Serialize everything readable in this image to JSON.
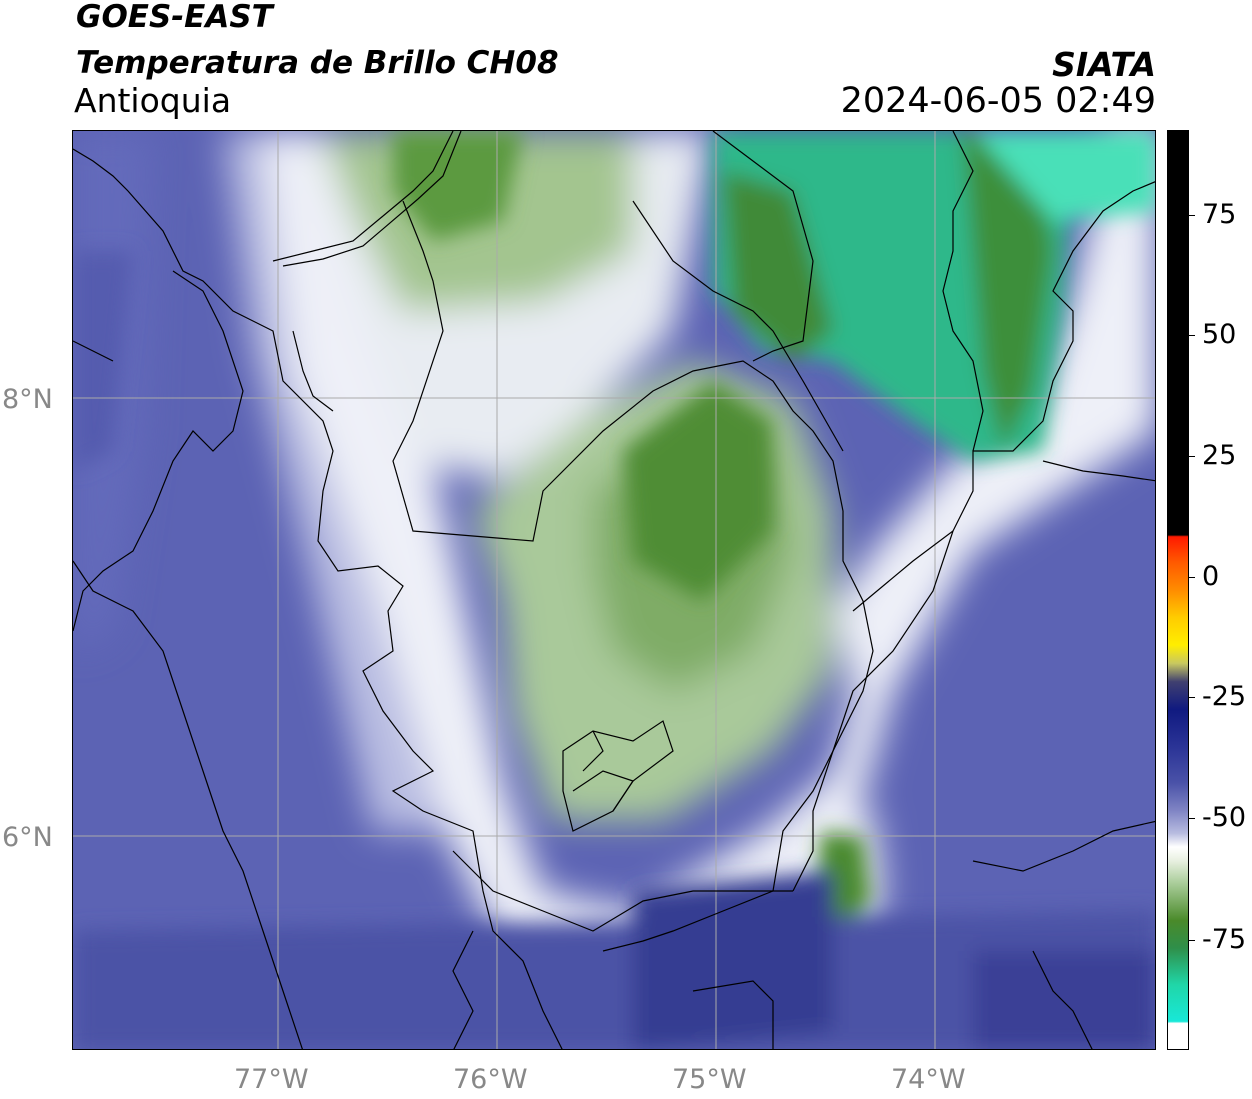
{
  "header": {
    "satellite": "GOES-EAST",
    "product": "Temperatura de Brillo CH08",
    "region": "Antioquia",
    "organization": "SIATA",
    "datetime": "2024-06-05 02:49"
  },
  "axes": {
    "longitude_ticks": [
      "77°W",
      "76°W",
      "75°W",
      "74°W"
    ],
    "latitude_ticks": [
      "8°N",
      "6°N"
    ]
  },
  "colorbar": {
    "labels": [
      "75",
      "50",
      "25",
      "0",
      "-25",
      "-50",
      "-75"
    ],
    "colors": {
      "black": "#000000",
      "red": "#ff1a00",
      "orange": "#ff8c00",
      "yellow": "#ffee00",
      "navy": "#101a80",
      "slate_blue": "#4a52a8",
      "lavender": "#b8bce0",
      "white": "#ffffff",
      "green": "#4a8a2a",
      "teal": "#20d6a8",
      "cyan": "#18e8d8"
    }
  },
  "map": {
    "colors": {
      "cold_cloud_green": "#4f8d34",
      "very_cold_teal": "#2db88a",
      "light_green": "#a9c99a",
      "white": "#f4f5fb",
      "lavender": "#b3b7df",
      "mid_blue": "#6a70bd",
      "background_blue": "#5c63b4",
      "dark_blue": "#3c4296"
    }
  }
}
